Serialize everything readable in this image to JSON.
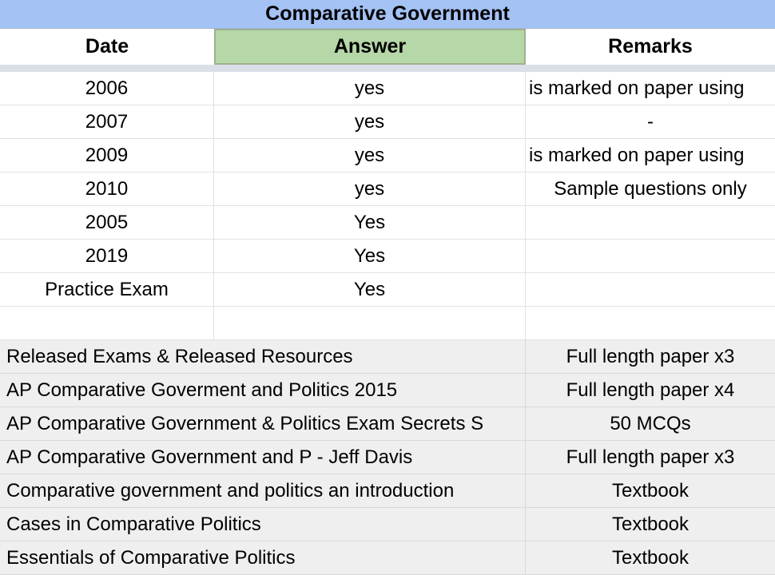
{
  "title": "Comparative Government",
  "colors": {
    "title_bg": "#A4C2F4",
    "answer_header_bg": "#B6D7A8",
    "answer_header_border": "#9EB18F",
    "divider_bg": "#DADFE8",
    "section_bg": "#EFEFEF",
    "gridline": "#E2E2E2",
    "text": "#000000"
  },
  "table1": {
    "headers": {
      "date": "Date",
      "answer": "Answer",
      "remarks": "Remarks"
    },
    "rows": [
      {
        "date": "2006",
        "answer": "yes",
        "remarks": "is marked on paper using"
      },
      {
        "date": "2007",
        "answer": "yes",
        "remarks": "-"
      },
      {
        "date": "2009",
        "answer": "yes",
        "remarks": "is marked on paper using"
      },
      {
        "date": "2010",
        "answer": "yes",
        "remarks": "Sample questions only"
      },
      {
        "date": "2005",
        "answer": "Yes",
        "remarks": ""
      },
      {
        "date": "2019",
        "answer": "Yes",
        "remarks": ""
      },
      {
        "date": "Practice Exam",
        "answer": "Yes",
        "remarks": ""
      },
      {
        "date": "",
        "answer": "",
        "remarks": ""
      }
    ]
  },
  "resources": {
    "rows": [
      {
        "name": "Released Exams & Released Resources",
        "detail": "Full length paper x3"
      },
      {
        "name": "AP Comparative Goverment and Politics 2015",
        "detail": "Full length paper x4"
      },
      {
        "name": "AP Comparative Government & Politics Exam Secrets S",
        "detail": "50 MCQs"
      },
      {
        "name": "AP Comparative Government and P - Jeff Davis",
        "detail": "Full length paper x3"
      },
      {
        "name": "Comparative government and politics an introduction",
        "detail": "Textbook"
      },
      {
        "name": "Cases in Comparative Politics",
        "detail": "Textbook"
      },
      {
        "name": "Essentials of Comparative Politics",
        "detail": "Textbook"
      }
    ]
  }
}
